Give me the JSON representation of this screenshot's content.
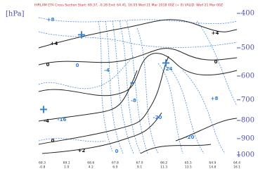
{
  "chart_data": {
    "type": "contour",
    "title": "HIRLAM ETA Cross Section Start: 69.37, -0.28 End: 64.41, 16.05 Wed 21 Mar 2018 00Z (+ 0) VALID: Wed 21 Mar 00Z",
    "y_label": "[hPa]",
    "ylim": [
      400,
      1000
    ],
    "ylog": true,
    "yinvert": true,
    "yticks": [
      400,
      500,
      600,
      700,
      800,
      900,
      1000
    ],
    "x_labels": [
      [
        "68.3",
        "-0.8"
      ],
      [
        "69.1",
        "1.9"
      ],
      [
        "68.6",
        "4.2"
      ],
      [
        "67.8",
        "6.9"
      ],
      [
        "67.0",
        "9.1"
      ],
      [
        "66.2",
        "11.3"
      ],
      [
        "65.5",
        "13.5"
      ],
      [
        "64.9",
        "14.8"
      ],
      [
        "64.4",
        "16.1"
      ]
    ],
    "contour_labels": [
      "+8",
      "+4",
      "+4",
      "0",
      "0",
      "0",
      "-4",
      "+8",
      "-4",
      "-16",
      "-8",
      "-20",
      "0",
      "+2",
      "0",
      "-20",
      "-24"
    ],
    "label_colors": [
      "blue",
      "black",
      "black",
      "black",
      "blue",
      "black",
      "blue",
      "blue",
      "black",
      "blue",
      "blue",
      "blue",
      "black",
      "black",
      "blue",
      "blue",
      "blue"
    ],
    "colors": {
      "title": "#d02020",
      "axis": "#5050b0",
      "blue": "#2f80d0",
      "black": "#111111"
    }
  }
}
